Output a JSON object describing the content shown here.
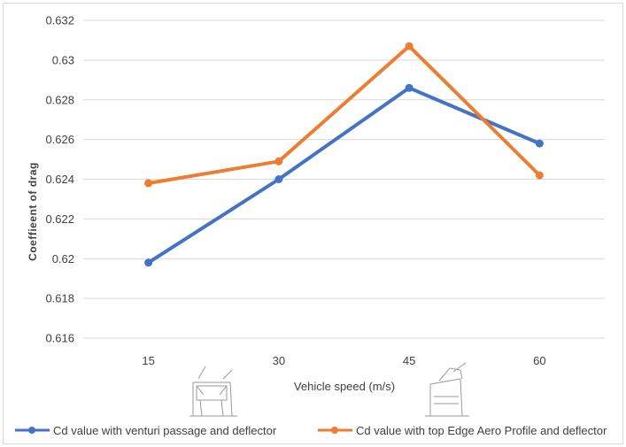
{
  "chart_data": {
    "type": "line",
    "title": "",
    "xlabel": "Vehicle speed (m/s)",
    "ylabel": "Coeffieent of drag",
    "categories": [
      "15",
      "30",
      "45",
      "60"
    ],
    "ylim": [
      0.616,
      0.632
    ],
    "yticks": [
      0.616,
      0.618,
      0.62,
      0.622,
      0.624,
      0.626,
      0.628,
      0.63,
      0.632
    ],
    "ytick_labels": [
      "0.616",
      "0.618",
      "0.62",
      "0.622",
      "0.624",
      "0.626",
      "0.628",
      "0.63",
      "0.632"
    ],
    "grid": true,
    "legend_position": "bottom",
    "series": [
      {
        "name": "Cd value with venturi passage and deflector",
        "color": "#4472C4",
        "values": [
          0.6198,
          0.624,
          0.6286,
          0.6258
        ]
      },
      {
        "name": "Cd value with top Edge Aero Profile and deflector",
        "color": "#ED7D31",
        "values": [
          0.6238,
          0.6249,
          0.6307,
          0.6242
        ]
      }
    ]
  }
}
